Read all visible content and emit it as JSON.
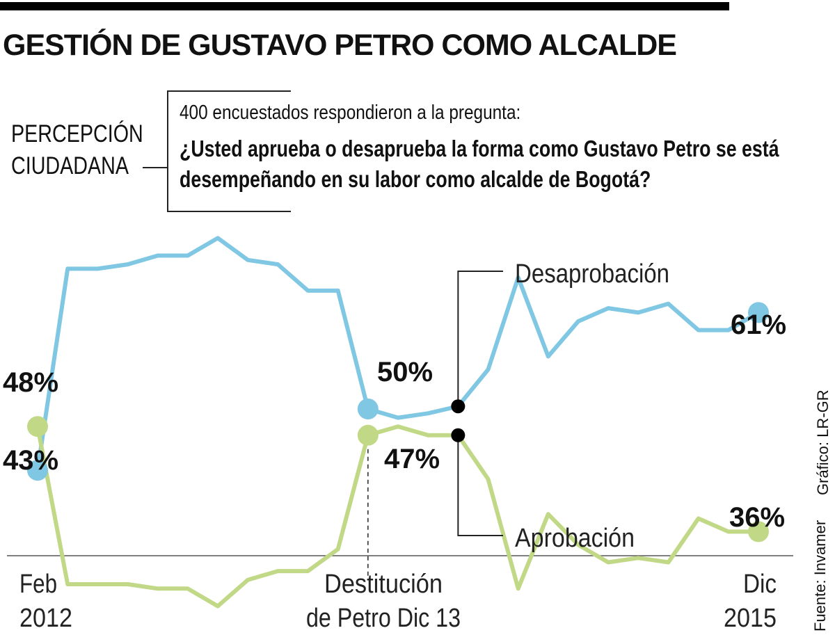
{
  "header": {
    "title": "GESTIÓN DE GUSTAVO PETRO COMO ALCALDE",
    "perception_line1": "PERCEPCIÓN",
    "perception_line2": "CIUDADANA",
    "question_intro": "400 encuestados respondieron a la pregunta:",
    "question_line1": "¿Usted aprueba o desaprueba la forma como Gustavo Petro se está",
    "question_line2": "desempeñando en su labor como alcalde de Bogotá?"
  },
  "credits": {
    "source": "Fuente: Invamer",
    "graphic": "Gráfico: LR-GR"
  },
  "chart_data": {
    "type": "line",
    "title": "GESTIÓN DE GUSTAVO PETRO COMO ALCALDE",
    "x_labels": [
      {
        "line1": "Feb",
        "line2": "2012",
        "index": 0
      },
      {
        "line1": "Destitución",
        "line2": "de Petro Dic 13",
        "index": 11
      },
      {
        "line1": "Dic",
        "line2": "2015",
        "index": 24
      }
    ],
    "ylim": [
      25,
      75
    ],
    "series": [
      {
        "name": "Desaprobación",
        "color": "#7fc7e2",
        "values": [
          43,
          66,
          66,
          66.5,
          67.5,
          67.5,
          69.5,
          67,
          66.5,
          63.5,
          63.5,
          50,
          49,
          49.5,
          50.3,
          54.5,
          65,
          56,
          60,
          61.5,
          61,
          62,
          59,
          59,
          61
        ],
        "labels": [
          {
            "index": 0,
            "text": "43%"
          },
          {
            "index": 11,
            "text": "50%"
          },
          {
            "index": 24,
            "text": "61%"
          }
        ]
      },
      {
        "name": "Aprobación",
        "color": "#c1d987",
        "values": [
          48,
          30,
          30,
          30,
          29.5,
          29.5,
          27.5,
          30.5,
          31.5,
          31.5,
          34,
          47,
          48,
          47,
          47,
          42,
          29.5,
          38,
          34.5,
          32.5,
          33,
          32.5,
          37.5,
          36,
          36
        ],
        "labels": [
          {
            "index": 0,
            "text": "48%"
          },
          {
            "index": 11,
            "text": "47%"
          },
          {
            "index": 24,
            "text": "36%"
          }
        ]
      }
    ],
    "annotations": [
      {
        "series": 0,
        "index": 14,
        "text": "Desaprobación"
      },
      {
        "series": 1,
        "index": 14,
        "text": "Aprobación"
      }
    ]
  }
}
